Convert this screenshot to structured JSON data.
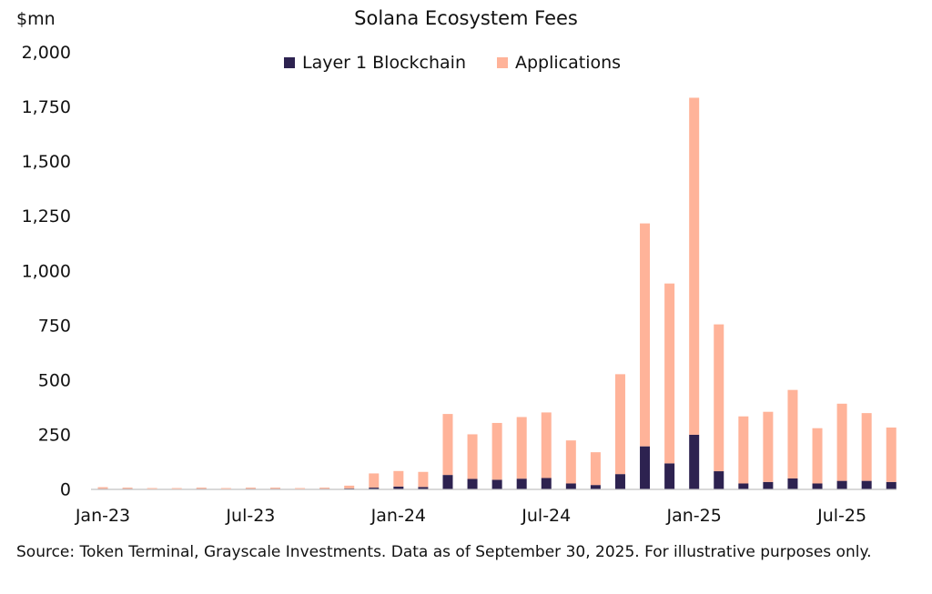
{
  "chart_data": {
    "type": "bar",
    "stacked": true,
    "title": "Solana Ecosystem Fees",
    "ylabel": "$mn",
    "xlabel": "",
    "ylim": [
      0,
      2000
    ],
    "yticks": [
      "0",
      "250",
      "500",
      "750",
      "1,000",
      "1,250",
      "1,500",
      "1,750",
      "2,000"
    ],
    "ytick_values": [
      0,
      250,
      500,
      750,
      1000,
      1250,
      1500,
      1750,
      2000
    ],
    "xtick_labels": [
      {
        "label": "Jan-23",
        "index": 0
      },
      {
        "label": "Jul-23",
        "index": 6
      },
      {
        "label": "Jan-24",
        "index": 12
      },
      {
        "label": "Jul-24",
        "index": 18
      },
      {
        "label": "Jan-25",
        "index": 24
      },
      {
        "label": "Jul-25",
        "index": 30
      }
    ],
    "grid": false,
    "legend_position": "top-center",
    "categories": [
      "Jan-23",
      "Feb-23",
      "Mar-23",
      "Apr-23",
      "May-23",
      "Jun-23",
      "Jul-23",
      "Aug-23",
      "Sep-23",
      "Oct-23",
      "Nov-23",
      "Dec-23",
      "Jan-24",
      "Feb-24",
      "Mar-24",
      "Apr-24",
      "May-24",
      "Jun-24",
      "Jul-24",
      "Aug-24",
      "Sep-24",
      "Oct-24",
      "Nov-24",
      "Dec-24",
      "Jan-25",
      "Feb-25",
      "Mar-25",
      "Apr-25",
      "May-25",
      "Jun-25",
      "Jul-25",
      "Aug-25",
      "Sep-25"
    ],
    "series": [
      {
        "name": "Layer 1 Blockchain",
        "color": "#2d2250",
        "values": [
          1,
          1,
          0,
          0,
          1,
          0,
          1,
          1,
          0,
          1,
          2,
          6,
          11,
          9,
          64,
          46,
          42,
          47,
          50,
          25,
          18,
          68,
          195,
          117,
          248,
          81,
          25,
          32,
          48,
          25,
          37,
          37,
          32
        ]
      },
      {
        "name": "Applications",
        "color": "#ffb399",
        "values": [
          7,
          5,
          4,
          4,
          5,
          4,
          5,
          5,
          4,
          5,
          13,
          65,
          71,
          69,
          279,
          204,
          260,
          282,
          300,
          197,
          150,
          457,
          1020,
          823,
          1542,
          672,
          307,
          321,
          405,
          253,
          353,
          310,
          249
        ]
      }
    ]
  },
  "source": "Source: Token Terminal, Grayscale Investments. Data as of September 30, 2025. For illustrative purposes only."
}
